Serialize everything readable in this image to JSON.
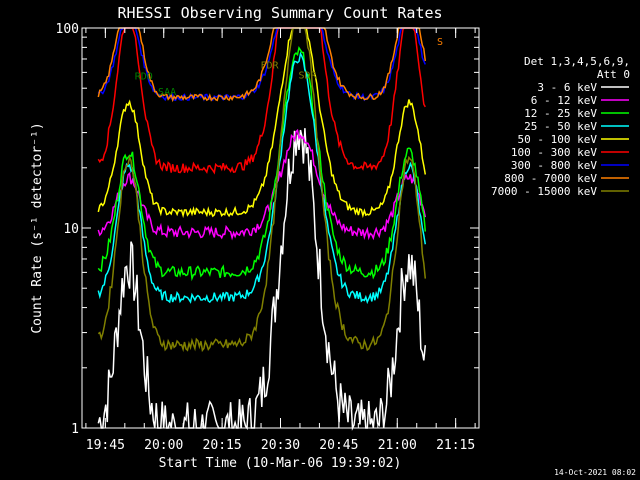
{
  "chart_data": {
    "type": "line",
    "title": "RHESSI Observing Summary Count Rates",
    "xlabel": "Start Time (10-Mar-06 19:39:02)",
    "ylabel": "Count Rate (s⁻¹ detector⁻¹)",
    "y_scale": "log",
    "ylim": [
      1,
      100
    ],
    "y_ticks": [
      {
        "value": 1,
        "label": "1"
      },
      {
        "value": 10,
        "label": "10"
      },
      {
        "value": 100,
        "label": "100"
      }
    ],
    "x_range_minutes": [
      19.65,
      21.35
    ],
    "x_ticks": [
      {
        "value": 19.75,
        "label": "19:45"
      },
      {
        "value": 20.0,
        "label": "20:00"
      },
      {
        "value": 20.25,
        "label": "20:15"
      },
      {
        "value": 20.5,
        "label": "20:30"
      },
      {
        "value": 20.75,
        "label": "20:45"
      },
      {
        "value": 21.0,
        "label": "21:00"
      },
      {
        "value": 21.25,
        "label": "21:15"
      }
    ],
    "legend_header": [
      "Det 1,3,4,5,6,9,",
      "Att 0"
    ],
    "legend_position": "right",
    "series": [
      {
        "name": "3 - 6 keV",
        "color": "#ffffff"
      },
      {
        "name": "6 - 12 keV",
        "color": "#ff00ff"
      },
      {
        "name": "12 - 25 keV",
        "color": "#00ff00"
      },
      {
        "name": "25 - 50 keV",
        "color": "#00ffff"
      },
      {
        "name": "50 - 100 keV",
        "color": "#ffff00"
      },
      {
        "name": "100 - 300 keV",
        "color": "#ff0000"
      },
      {
        "name": "300 - 800 keV",
        "color": "#0000ff"
      },
      {
        "name": "800 - 7000 keV",
        "color": "#ff8000"
      },
      {
        "name": "7000 - 15000 keV",
        "color": "#808000"
      }
    ],
    "flag_labels": [
      {
        "label": "FDR",
        "color": "#808000"
      },
      {
        "label": "RDO",
        "color": "#008000"
      },
      {
        "label": "SAA",
        "color": "#008000"
      },
      {
        "label": "SDR",
        "color": "#808000"
      },
      {
        "label": "S",
        "color": "#ff8000"
      }
    ],
    "timestamp": "14-Oct-2021 08:02"
  }
}
